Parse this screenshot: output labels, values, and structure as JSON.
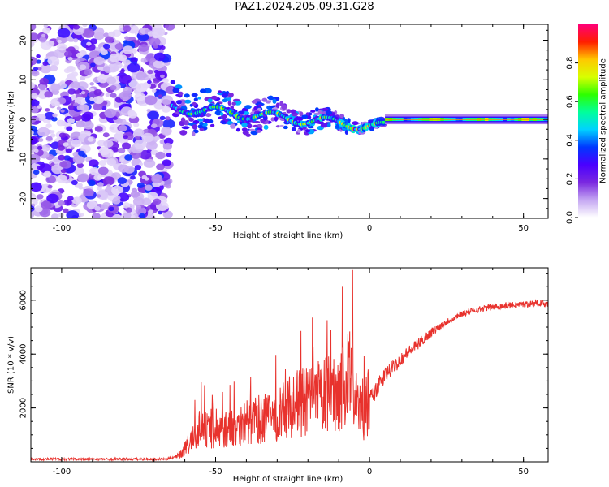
{
  "title": "PAZ1.2024.205.09.31.G28",
  "chart_data": [
    {
      "type": "heatmap",
      "xlabel": "Height of straight line (km)",
      "ylabel": "Frequency (Hz)",
      "xlim": [
        -110,
        58
      ],
      "ylim": [
        -25,
        24
      ],
      "xticks": [
        -100,
        -50,
        0,
        50
      ],
      "yticks": [
        -20,
        -10,
        0,
        10,
        20
      ],
      "colorbar": {
        "label": "Normalized spectral amplitude",
        "range": [
          0,
          1
        ],
        "ticks": [
          "0.0",
          "0.2",
          "0.4",
          "0.6",
          "0.8"
        ],
        "colormap": [
          "#ffffff",
          "#c4a6f2",
          "#7a28e0",
          "#4a00ff",
          "#0037ff",
          "#00d2ff",
          "#00ff9c",
          "#2dff00",
          "#d8ff00",
          "#ffc800",
          "#ff1e00",
          "#ff0078"
        ]
      },
      "regions": [
        {
          "name": "noise",
          "x": [
            -110,
            -64
          ],
          "freq": [
            -25,
            24
          ],
          "amplitude": 0.15
        },
        {
          "name": "transition",
          "x": [
            -64,
            5
          ],
          "freq_center": [
            3,
            -2
          ],
          "amplitude": 0.35
        },
        {
          "name": "tone",
          "x": [
            5,
            58
          ],
          "freq": 0,
          "amplitude": 0.85
        }
      ]
    },
    {
      "type": "line",
      "xlabel": "Height of straight line (km)",
      "ylabel": "SNR (10 * v/v)",
      "xlim": [
        -110,
        58
      ],
      "ylim": [
        0,
        7200
      ],
      "xticks": [
        -100,
        -50,
        0,
        50
      ],
      "yticks": [
        2000,
        4000,
        6000
      ],
      "color": "#e8322d",
      "envelope": {
        "x": [
          -110,
          -90,
          -66,
          -62,
          -58,
          -55,
          -50,
          -45,
          -40,
          -35,
          -30,
          -25,
          -20,
          -15,
          -10,
          -8,
          -6,
          -4,
          -2,
          0,
          5,
          10,
          15,
          20,
          25,
          30,
          35,
          40,
          45,
          50,
          55,
          58
        ],
        "y": [
          100,
          100,
          100,
          220,
          700,
          1200,
          1000,
          1200,
          1400,
          1500,
          1600,
          2000,
          2100,
          2300,
          2500,
          2800,
          3000,
          2000,
          1500,
          2300,
          3200,
          3800,
          4300,
          4800,
          5200,
          5500,
          5650,
          5750,
          5800,
          5850,
          5900,
          5850
        ]
      },
      "spike": {
        "x": -5.5,
        "y": 7100
      }
    }
  ]
}
